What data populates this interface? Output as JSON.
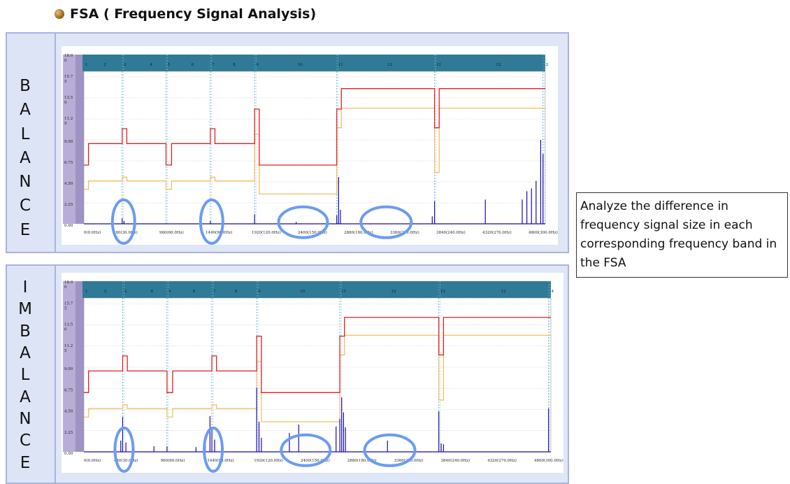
{
  "title": "FSA ( Frequency Signal Analysis)",
  "note": "Analyze the difference in frequency signal size in each corresponding frequency band in the FSA",
  "colors": {
    "panel_border": "#a9b3e0",
    "panel_bg": "#dfe6f6",
    "chart_header": "#2f7a96",
    "red_trace": "#e02020",
    "orange_trace": "#f5b44a",
    "spectrum": "#1a0aa8",
    "highlight_ellipse": "#6b9cf0"
  },
  "panels": [
    {
      "id": "balance",
      "label_letters": [
        "B",
        "A",
        "L",
        "A",
        "N",
        "C",
        "E"
      ],
      "chart": {
        "y_ticks": [
          "18.0\n0",
          "15.7\n5",
          "13.5\n0",
          "11.2\n5",
          "9.00",
          "6.75",
          "4.50",
          "2.25",
          "0.00"
        ],
        "x_ticks": [
          "0(0.0Hz)",
          "480(30.0Hz)",
          "960(60.0Hz)",
          "1440(90.0Hz)",
          "1920(120.0Hz)",
          "2400(150.0Hz)",
          "2880(180.0Hz)",
          "3360(210.0Hz)",
          "3840(240.0Hz)",
          "4320(270.0Hz)",
          "4800(300.0Hz)"
        ],
        "band_labels": [
          "1",
          "2",
          "3",
          "4",
          "5",
          "6",
          "7",
          "8",
          "9",
          "10",
          "11",
          "12",
          "13",
          "12",
          "2"
        ]
      }
    },
    {
      "id": "imbalance",
      "label_letters": [
        "I",
        "M",
        "B",
        "A",
        "L",
        "A",
        "N",
        "C",
        "E"
      ],
      "chart": {
        "y_ticks": [
          "18.0\n0",
          "15.7\n5",
          "13.5\n0",
          "11.2\n5",
          "9.00",
          "6.75",
          "4.50",
          "2.25",
          "0.00"
        ],
        "x_ticks": [
          "0(0.0Hz)",
          "480(30.0Hz)",
          "960(60.0Hz)",
          "1440(90.0Hz)",
          "1920(120.0Hz)",
          "2400(150.0Hz)",
          "2880(180.0Hz)",
          "3360(210.0Hz)",
          "3840(240.0Hz)",
          "4320(270.0Hz)",
          "4800(300.0Hz)"
        ],
        "band_labels": [
          "1",
          "2",
          "3",
          "4",
          "5",
          "6",
          "7",
          "8",
          "9",
          "10",
          "11",
          "12",
          "13",
          "12",
          "4"
        ]
      }
    }
  ]
}
